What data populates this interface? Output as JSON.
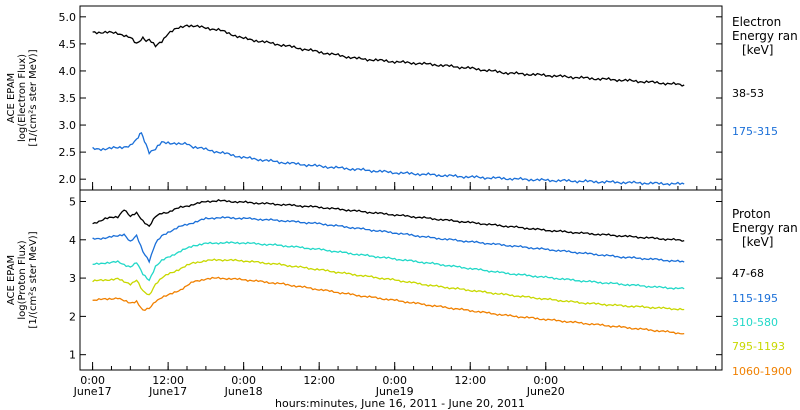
{
  "chart_data": [
    {
      "type": "line",
      "panel": "electron",
      "ylabel_lines": [
        "ACE EPAM",
        "log(Electron Flux)",
        "[1/(cm²s ster MeV)]"
      ],
      "legend_title": [
        "Electron",
        "Energy ran",
        "[keV]"
      ],
      "ylim": [
        1.8,
        5.2
      ],
      "yticks": [
        "2.0",
        "2.5",
        "3.0",
        "3.5",
        "4.0",
        "4.5",
        "5.0"
      ],
      "ytick_values": [
        2.0,
        2.5,
        3.0,
        3.5,
        4.0,
        4.5,
        5.0
      ],
      "series": [
        {
          "name": "38-53",
          "color": "#000000",
          "x": [
            0,
            2,
            4,
            5,
            6,
            7,
            8,
            8.5,
            9,
            10,
            11,
            12,
            13,
            14,
            15,
            16,
            20,
            24,
            30,
            36,
            42,
            48,
            54,
            60,
            66,
            72,
            78,
            84,
            90,
            94
          ],
          "values": [
            4.72,
            4.71,
            4.7,
            4.66,
            4.61,
            4.5,
            4.62,
            4.55,
            4.58,
            4.45,
            4.55,
            4.7,
            4.76,
            4.8,
            4.85,
            4.83,
            4.76,
            4.6,
            4.48,
            4.35,
            4.23,
            4.17,
            4.12,
            4.05,
            3.96,
            3.92,
            3.87,
            3.83,
            3.78,
            3.74
          ]
        },
        {
          "name": "175-315",
          "color": "#1a6fd8",
          "x": [
            0,
            2,
            4,
            5,
            6,
            7,
            7.5,
            8,
            8.5,
            9,
            10,
            11,
            12,
            13,
            14,
            15,
            16,
            20,
            24,
            30,
            36,
            42,
            48,
            54,
            60,
            66,
            72,
            78,
            84,
            90,
            94
          ],
          "values": [
            2.56,
            2.56,
            2.58,
            2.6,
            2.62,
            2.72,
            2.85,
            2.8,
            2.62,
            2.5,
            2.55,
            2.68,
            2.68,
            2.66,
            2.64,
            2.66,
            2.6,
            2.5,
            2.4,
            2.31,
            2.24,
            2.18,
            2.12,
            2.08,
            2.04,
            2.01,
            1.98,
            1.96,
            1.94,
            1.92,
            1.91
          ]
        }
      ]
    },
    {
      "type": "line",
      "panel": "proton",
      "ylabel_lines": [
        "ACE EPAM",
        "log(Proton Flux)",
        "[1/(cm²s ster MeV)]"
      ],
      "legend_title": [
        "Proton",
        "Energy ran",
        "[keV]"
      ],
      "ylim": [
        0.6,
        5.3
      ],
      "yticks": [
        "1",
        "2",
        "3",
        "4",
        "5"
      ],
      "ytick_values": [
        1,
        2,
        3,
        4,
        5
      ],
      "series": [
        {
          "name": "47-68",
          "color": "#000000",
          "x": [
            0,
            2,
            4,
            5,
            6,
            7,
            8,
            9,
            10,
            11,
            12,
            14,
            16,
            18,
            20,
            24,
            30,
            36,
            42,
            48,
            54,
            60,
            66,
            72,
            78,
            84,
            90,
            94
          ],
          "values": [
            4.42,
            4.55,
            4.6,
            4.8,
            4.6,
            4.7,
            4.5,
            4.35,
            4.6,
            4.7,
            4.72,
            4.85,
            4.92,
            5.0,
            5.02,
            4.98,
            4.92,
            4.85,
            4.75,
            4.65,
            4.55,
            4.45,
            4.35,
            4.25,
            4.17,
            4.1,
            4.03,
            3.98
          ]
        },
        {
          "name": "115-195",
          "color": "#1a6fd8",
          "x": [
            0,
            2,
            4,
            5,
            6,
            7,
            8,
            9,
            10,
            11,
            12,
            14,
            16,
            18,
            20,
            24,
            30,
            36,
            42,
            48,
            54,
            60,
            66,
            72,
            78,
            84,
            90,
            94
          ],
          "values": [
            4.02,
            4.05,
            4.1,
            4.15,
            3.95,
            4.1,
            3.7,
            3.45,
            3.9,
            4.1,
            4.2,
            4.35,
            4.45,
            4.55,
            4.58,
            4.56,
            4.5,
            4.42,
            4.3,
            4.18,
            4.05,
            3.95,
            3.85,
            3.75,
            3.65,
            3.55,
            3.48,
            3.42
          ]
        },
        {
          "name": "310-580",
          "color": "#22d8c8",
          "x": [
            0,
            2,
            4,
            5,
            6,
            7,
            8,
            9,
            10,
            11,
            12,
            14,
            16,
            18,
            20,
            24,
            30,
            36,
            42,
            48,
            54,
            60,
            66,
            72,
            78,
            84,
            90,
            94
          ],
          "values": [
            3.35,
            3.4,
            3.42,
            3.35,
            3.3,
            3.4,
            3.1,
            2.95,
            3.3,
            3.45,
            3.55,
            3.7,
            3.85,
            3.9,
            3.92,
            3.92,
            3.85,
            3.75,
            3.62,
            3.5,
            3.38,
            3.25,
            3.12,
            3.02,
            2.92,
            2.84,
            2.76,
            2.72
          ]
        },
        {
          "name": "795-1193",
          "color": "#c8d800",
          "x": [
            0,
            2,
            4,
            5,
            6,
            7,
            8,
            9,
            10,
            11,
            12,
            14,
            16,
            18,
            20,
            24,
            30,
            36,
            42,
            48,
            54,
            60,
            66,
            72,
            78,
            84,
            90,
            94
          ],
          "values": [
            2.92,
            2.95,
            2.98,
            2.9,
            2.85,
            2.95,
            2.65,
            2.55,
            2.85,
            3.0,
            3.1,
            3.25,
            3.4,
            3.45,
            3.48,
            3.45,
            3.35,
            3.22,
            3.08,
            2.95,
            2.8,
            2.68,
            2.56,
            2.45,
            2.35,
            2.28,
            2.22,
            2.18
          ]
        },
        {
          "name": "1060-1900",
          "color": "#f08000",
          "x": [
            0,
            2,
            4,
            5,
            6,
            7,
            8,
            9,
            10,
            11,
            12,
            14,
            16,
            18,
            20,
            24,
            30,
            36,
            42,
            48,
            54,
            60,
            66,
            72,
            78,
            84,
            90,
            94
          ],
          "values": [
            2.42,
            2.45,
            2.48,
            2.4,
            2.35,
            2.4,
            2.15,
            2.2,
            2.4,
            2.5,
            2.55,
            2.7,
            2.9,
            2.98,
            3.0,
            2.96,
            2.85,
            2.7,
            2.55,
            2.42,
            2.28,
            2.15,
            2.02,
            1.92,
            1.82,
            1.72,
            1.62,
            1.55
          ]
        }
      ]
    }
  ],
  "x_axis": {
    "xlim": [
      -2,
      100
    ],
    "unit": "hours",
    "minor_step": 3,
    "ticks": [
      {
        "x": 0,
        "time": "0:00",
        "date": "June17"
      },
      {
        "x": 24,
        "time": "0:00",
        "date": "June18"
      },
      {
        "x": 48,
        "time": "0:00",
        "date": "June19"
      },
      {
        "x": 72,
        "time": "0:00",
        "date": "June20"
      }
    ],
    "mid_ticks": [
      {
        "x": 12,
        "time": "12:00",
        "date": "June17"
      },
      {
        "x": 36,
        "time": "12:00",
        "date": ""
      },
      {
        "x": 60,
        "time": "12:00",
        "date": ""
      }
    ],
    "xlabel": "hours:minutes, June 16, 2011 - June 20, 2011"
  }
}
